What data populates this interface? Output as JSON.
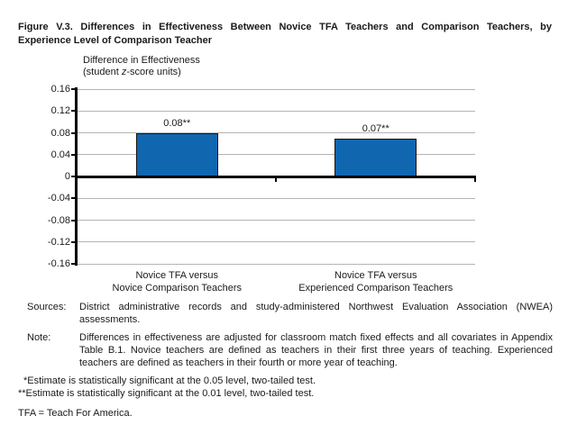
{
  "figure": {
    "title_lines": [
      "Figure V.3. Differences in Effectiveness Between Novice TFA Teachers and Comparison Teachers, by",
      "Experience Level of Comparison Teacher"
    ]
  },
  "chart_data": {
    "type": "bar",
    "axis_title_line1": "Difference in Effectiveness",
    "axis_title_line2": {
      "prefix": "(student ",
      "italic": "z",
      "suffix": "-score units)"
    },
    "categories": [
      [
        "Novice TFA versus",
        "Novice Comparison Teachers"
      ],
      [
        "Novice TFA versus",
        "Experienced Comparison Teachers"
      ]
    ],
    "values": [
      0.08,
      0.07
    ],
    "value_labels": [
      "0.08**",
      "0.07**"
    ],
    "yticks": [
      0.16,
      0.12,
      0.08,
      0.04,
      0,
      -0.04,
      -0.08,
      -0.12,
      -0.16
    ],
    "ytick_labels": [
      "0.16",
      "0.12",
      "0.08",
      "0.04",
      "0",
      "-0.04",
      "-0.08",
      "-0.12",
      "-0.16"
    ],
    "ylim": [
      -0.16,
      0.16
    ],
    "grid": true,
    "legend": false,
    "bar_color": "#1166B0",
    "bar_border_color": "#15140f",
    "gridline_color": "#b4b4b4",
    "bar_width_frac": 0.206
  },
  "notes": {
    "sources_label": "Sources:",
    "sources_text": "District administrative records and study-administered Northwest Evaluation Association (NWEA) assessments.",
    "note_label": "Note:",
    "note_text": "Differences in effectiveness are adjusted for classroom match fixed effects and all covariates in Appendix Table B.1. Novice teachers are defined as teachers in their first three years of teaching. Experienced teachers are defined as teachers in their fourth or more year of teaching.",
    "footnote_1": "*Estimate is statistically significant at the 0.05 level, two-tailed test.",
    "footnote_2": "**Estimate is statistically significant at the 0.01 level, two-tailed test.",
    "abbreviation": "TFA = Teach For America."
  }
}
